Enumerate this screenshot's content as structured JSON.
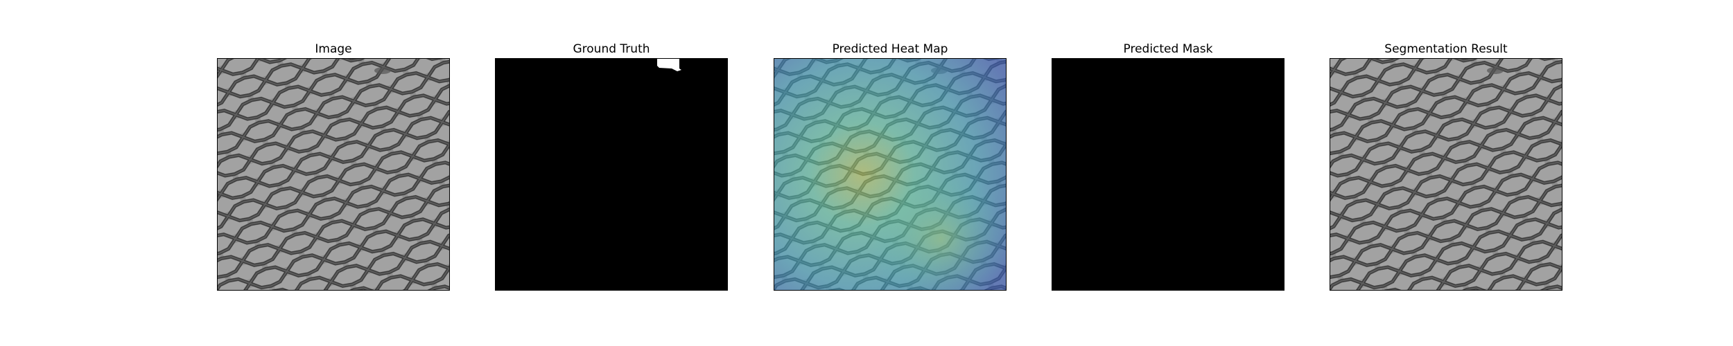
{
  "panels": [
    {
      "title": "Image",
      "kind": "image"
    },
    {
      "title": "Ground Truth",
      "kind": "mask"
    },
    {
      "title": "Predicted Heat Map",
      "kind": "heatmap"
    },
    {
      "title": "Predicted Mask",
      "kind": "empty-mask"
    },
    {
      "title": "Segmentation Result",
      "kind": "image"
    }
  ],
  "colors": {
    "mesh_background": "#8e8e8e",
    "mesh_wire": "#3f3f3f",
    "mask_background": "#000000",
    "mask_foreground": "#ffffff",
    "heat_low": "#3f7fc6",
    "heat_mid": "#4bbfb4",
    "heat_high": "#a8c85a"
  }
}
